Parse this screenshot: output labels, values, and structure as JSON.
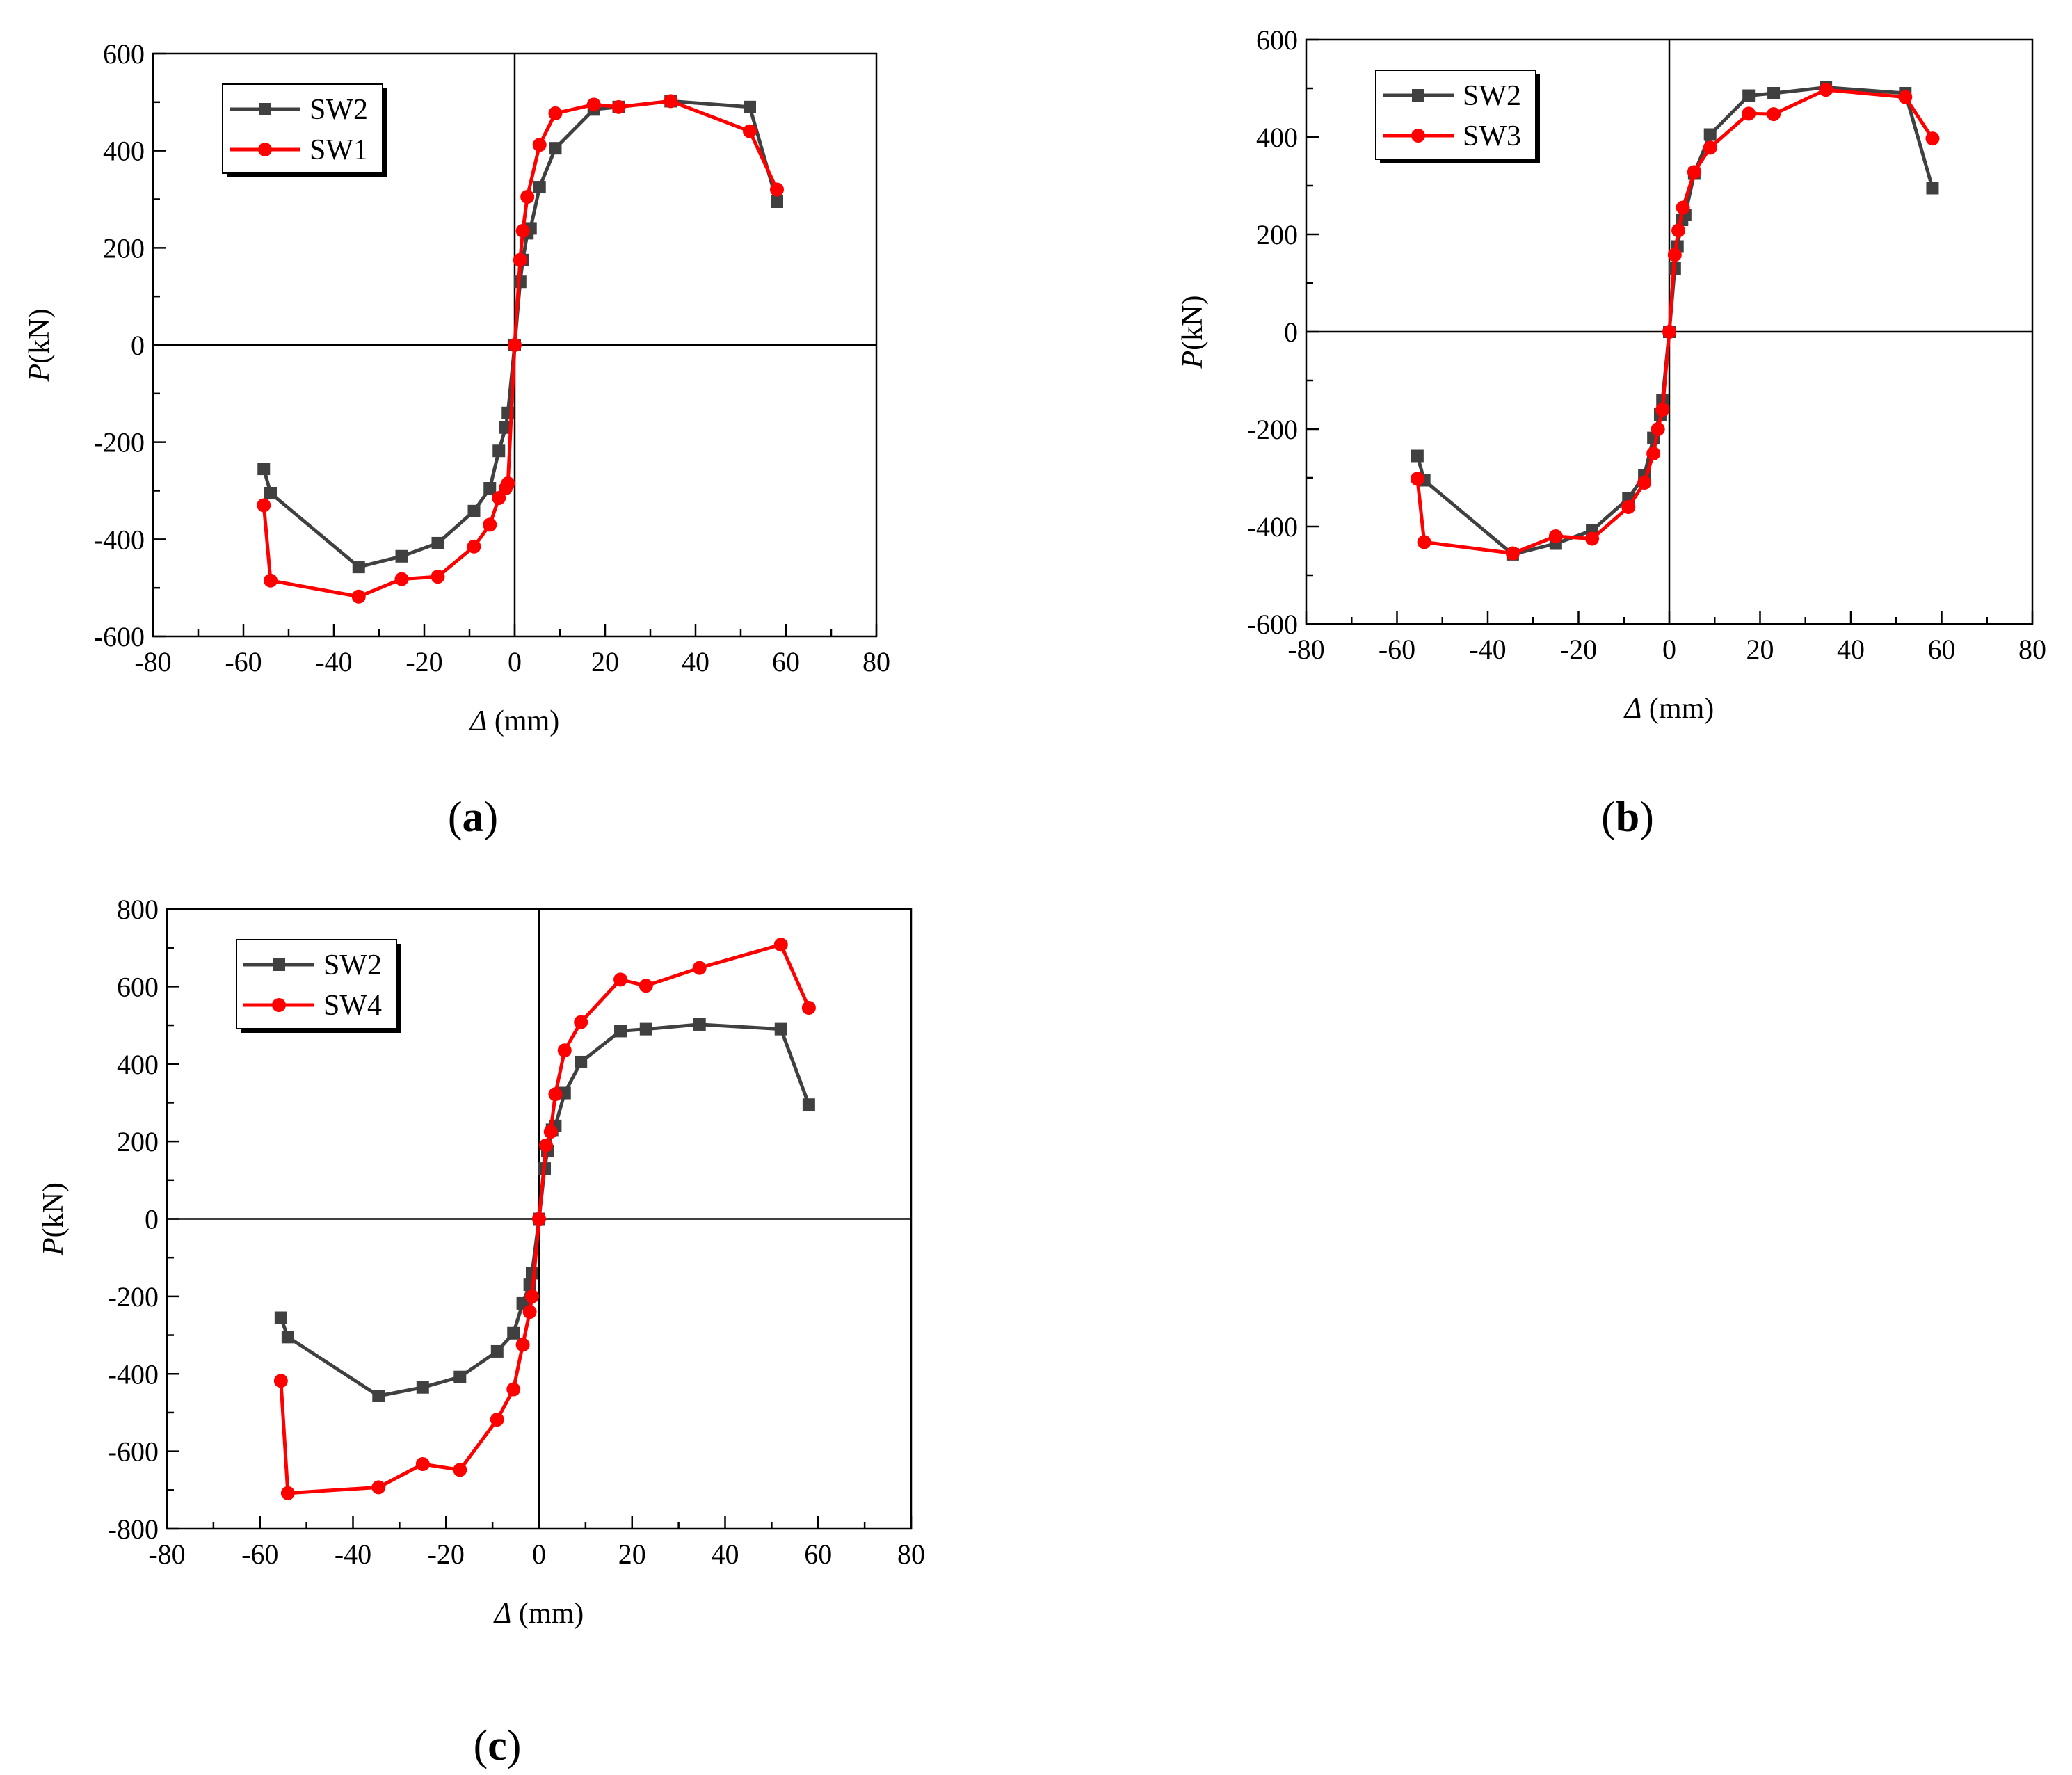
{
  "chart_data": [
    {
      "type": "line",
      "panel_label": "a",
      "xlabel": "Δ (mm)",
      "ylabel": "P(kN)",
      "xlim": [
        -80,
        80
      ],
      "ylim": [
        -600,
        600
      ],
      "xticks": [
        -80,
        -60,
        -40,
        -20,
        0,
        20,
        40,
        60,
        80
      ],
      "yticks": [
        -600,
        -400,
        -200,
        0,
        200,
        400,
        600
      ],
      "legend_position": "top-left",
      "series": [
        {
          "name": "SW2",
          "color": "#404040",
          "marker": "square",
          "x": [
            -55.5,
            -54,
            -34.5,
            -25,
            -17,
            -9,
            -5.5,
            -3.5,
            -2,
            -1.5,
            0,
            1.2,
            1.8,
            2.8,
            3.5,
            5.5,
            9,
            17.5,
            23,
            34.5,
            52,
            58
          ],
          "y": [
            -255,
            -305,
            -457,
            -435,
            -408,
            -342,
            -295,
            -218,
            -170,
            -140,
            0,
            130,
            175,
            230,
            240,
            325,
            405,
            485,
            490,
            502,
            490,
            295
          ]
        },
        {
          "name": "SW1",
          "color": "#ff0000",
          "marker": "circle",
          "x": [
            -55.5,
            -54,
            -34.5,
            -25,
            -17,
            -9,
            -5.5,
            -3.5,
            -2,
            -1.5,
            0,
            1.2,
            1.8,
            2.8,
            5.5,
            9,
            17.5,
            23,
            34.5,
            52,
            58
          ],
          "y": [
            -330,
            -485,
            -518,
            -482,
            -477,
            -415,
            -370,
            -315,
            -295,
            -285,
            0,
            175,
            235,
            305,
            412,
            477,
            495,
            490,
            502,
            440,
            320
          ]
        }
      ]
    },
    {
      "type": "line",
      "panel_label": "b",
      "xlabel": "Δ (mm)",
      "ylabel": "P(kN)",
      "xlim": [
        -80,
        80
      ],
      "ylim": [
        -600,
        600
      ],
      "xticks": [
        -80,
        -60,
        -40,
        -20,
        0,
        20,
        40,
        60,
        80
      ],
      "yticks": [
        -600,
        -400,
        -200,
        0,
        200,
        400,
        600
      ],
      "legend_position": "top-left",
      "series": [
        {
          "name": "SW2",
          "color": "#404040",
          "marker": "square",
          "x": [
            -55.5,
            -54,
            -34.5,
            -25,
            -17,
            -9,
            -5.5,
            -3.5,
            -2,
            -1.5,
            0,
            1.2,
            1.8,
            2.8,
            3.5,
            5.5,
            9,
            17.5,
            23,
            34.5,
            52,
            58
          ],
          "y": [
            -255,
            -305,
            -457,
            -435,
            -408,
            -342,
            -295,
            -218,
            -170,
            -140,
            0,
            130,
            175,
            230,
            240,
            325,
            405,
            485,
            490,
            502,
            490,
            295
          ]
        },
        {
          "name": "SW3",
          "color": "#ff0000",
          "marker": "circle",
          "x": [
            -55.5,
            -54,
            -34.5,
            -25,
            -17,
            -9,
            -5.5,
            -3.5,
            -2.5,
            -1.5,
            0,
            1.2,
            2,
            3,
            5.5,
            9,
            17.5,
            23,
            34.5,
            52,
            58
          ],
          "y": [
            -302,
            -432,
            -455,
            -420,
            -425,
            -360,
            -310,
            -250,
            -200,
            -160,
            0,
            158,
            208,
            255,
            328,
            378,
            448,
            447,
            497,
            482,
            397
          ]
        }
      ]
    },
    {
      "type": "line",
      "panel_label": "c",
      "xlabel": "Δ (mm)",
      "ylabel": "P(kN)",
      "xlim": [
        -80,
        80
      ],
      "ylim": [
        -800,
        800
      ],
      "xticks": [
        -80,
        -60,
        -40,
        -20,
        0,
        20,
        40,
        60,
        80
      ],
      "yticks": [
        -800,
        -600,
        -400,
        -200,
        0,
        200,
        400,
        600,
        800
      ],
      "legend_position": "top-left",
      "series": [
        {
          "name": "SW2",
          "color": "#404040",
          "marker": "square",
          "x": [
            -55.5,
            -54,
            -34.5,
            -25,
            -17,
            -9,
            -5.5,
            -3.5,
            -2,
            -1.5,
            0,
            1.2,
            1.8,
            2.8,
            3.5,
            5.5,
            9,
            17.5,
            23,
            34.5,
            52,
            58
          ],
          "y": [
            -255,
            -305,
            -457,
            -435,
            -408,
            -342,
            -295,
            -218,
            -170,
            -140,
            0,
            130,
            175,
            230,
            240,
            325,
            405,
            485,
            490,
            502,
            490,
            295
          ]
        },
        {
          "name": "SW4",
          "color": "#ff0000",
          "marker": "circle",
          "x": [
            -55.5,
            -54,
            -34.5,
            -25,
            -17,
            -9,
            -5.5,
            -3.5,
            -2,
            -1.5,
            0,
            1.5,
            2.5,
            3.5,
            5.5,
            9,
            17.5,
            23,
            34.5,
            52,
            58
          ],
          "y": [
            -418,
            -708,
            -693,
            -633,
            -648,
            -518,
            -440,
            -325,
            -240,
            -200,
            0,
            190,
            225,
            322,
            435,
            508,
            618,
            602,
            648,
            708,
            545
          ]
        }
      ]
    }
  ]
}
